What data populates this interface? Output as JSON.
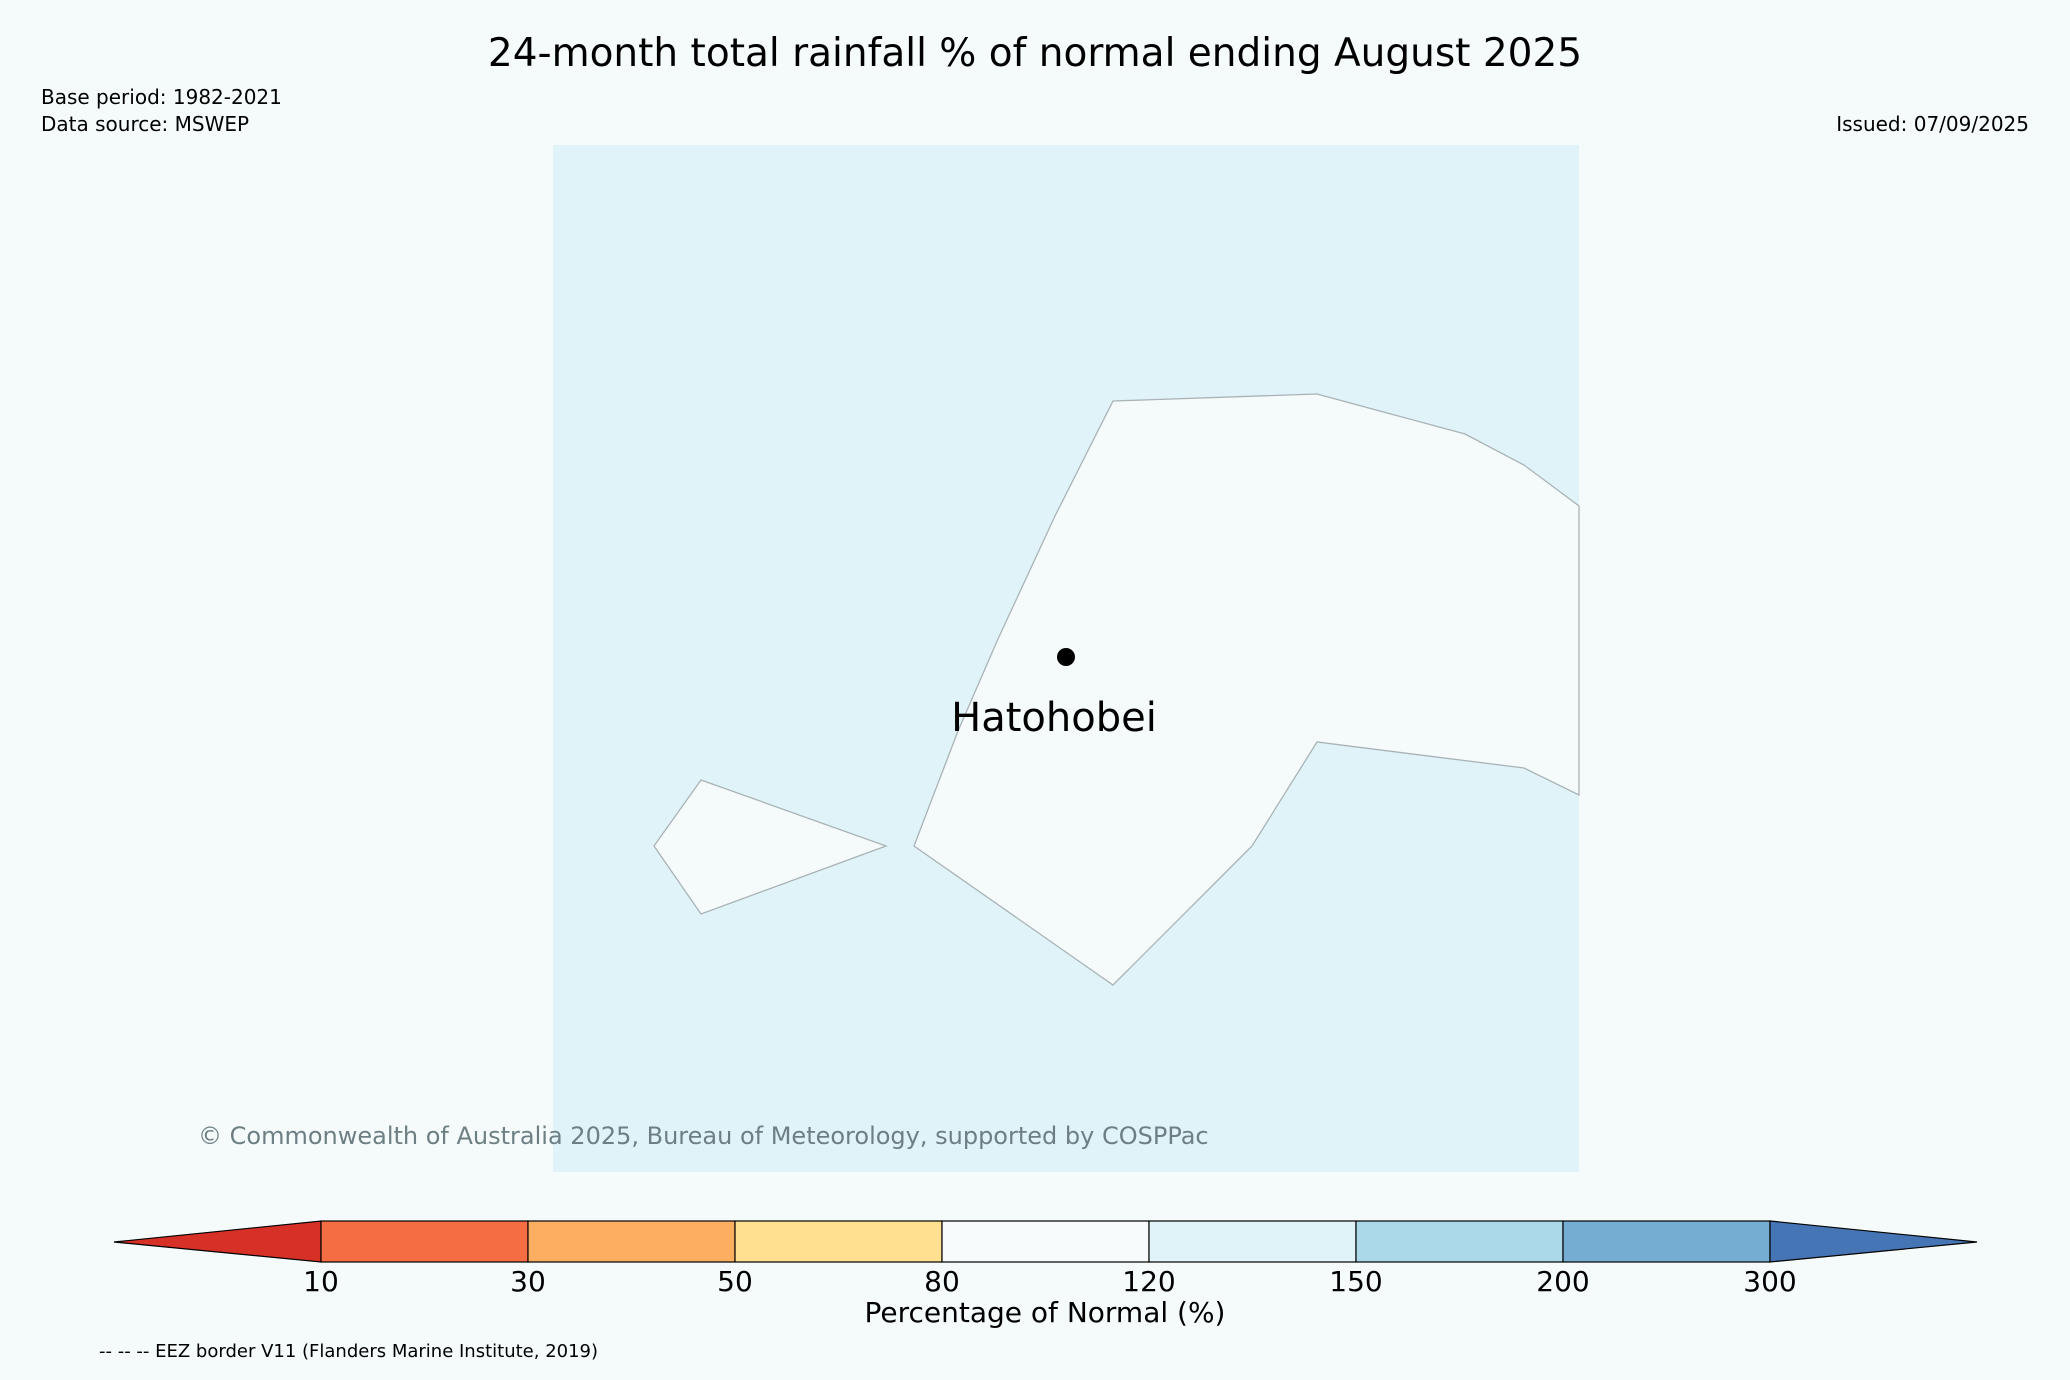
{
  "title": "24-month total rainfall % of normal ending August 2025",
  "base_period": "Base period: 1982-2021",
  "data_source": "Data source: MSWEP",
  "issued": "Issued: 07/09/2025",
  "map": {
    "place_name": "Hatohobei",
    "ocean_color": "#e0f3f8",
    "land_color": "#f5fbfb"
  },
  "copyright": "© Commonwealth of Australia 2025, Bureau of Meteorology, supported by COSPPac",
  "colorbar": {
    "label": "Percentage of Normal (%)",
    "ticks": [
      "10",
      "30",
      "50",
      "80",
      "120",
      "150",
      "200",
      "300"
    ],
    "colors": [
      "#d73027",
      "#f46d43",
      "#fdae61",
      "#fee090",
      "#f7fbfb",
      "#e0f3f8",
      "#abd9e9",
      "#74add1",
      "#4575b4"
    ]
  },
  "eez_note": "-- -- -- EEZ border V11 (Flanders Marine Institute, 2019)"
}
